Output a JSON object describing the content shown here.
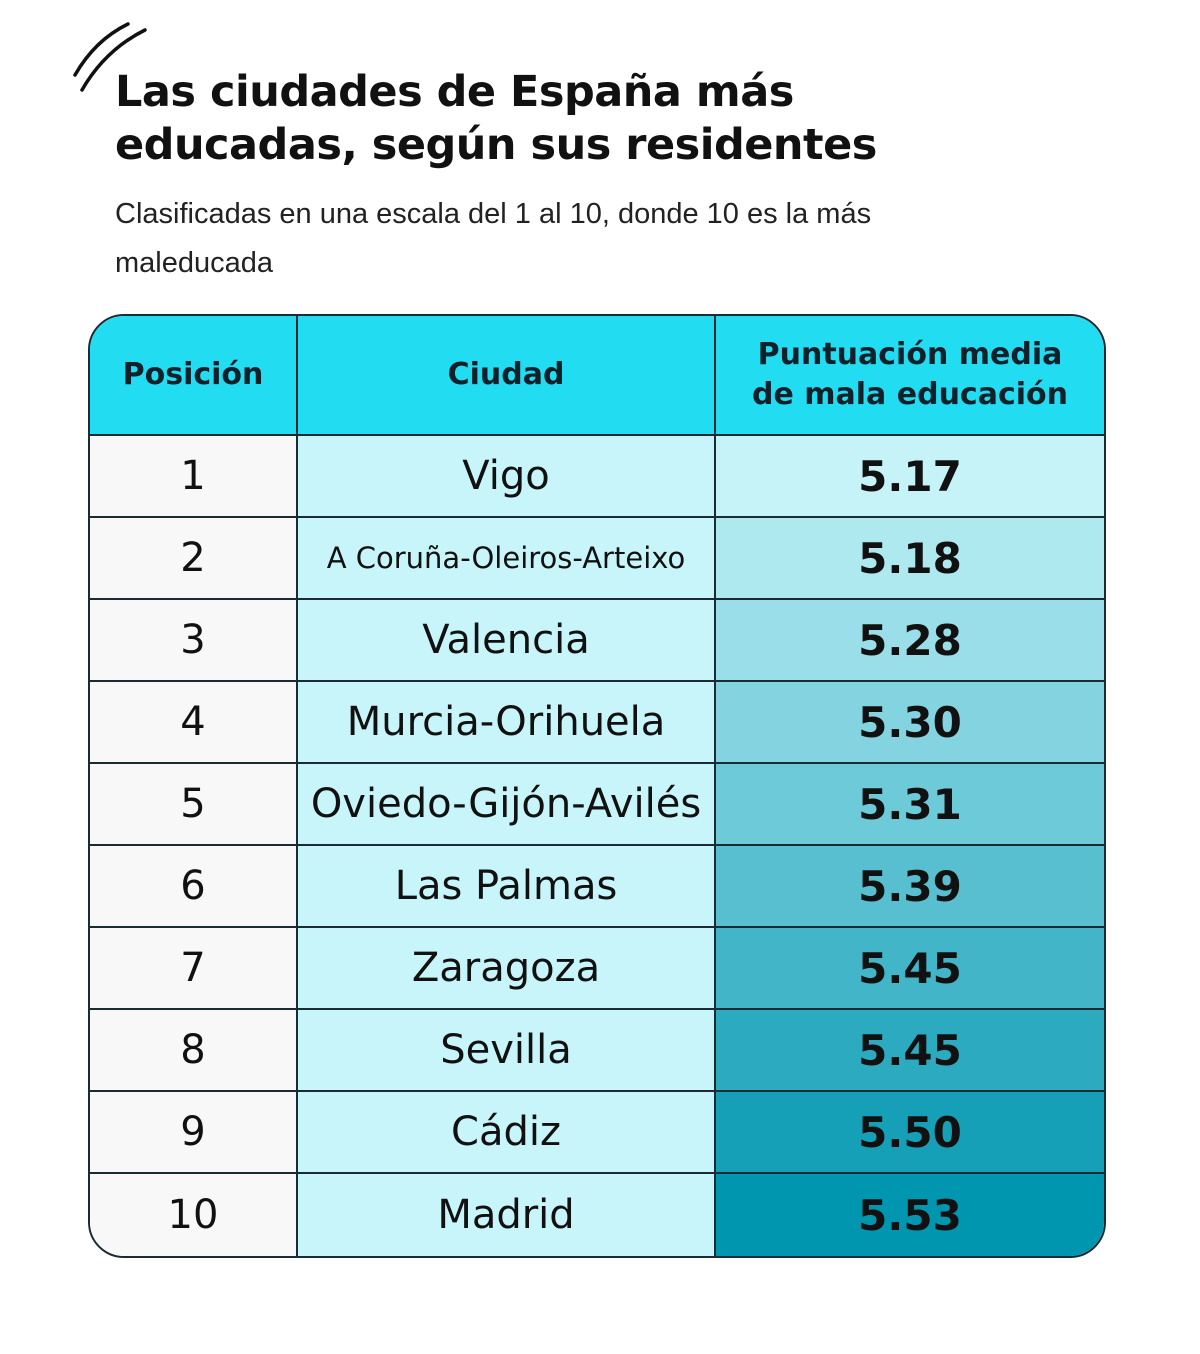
{
  "title": "Las ciudades de España más educadas, según sus residentes",
  "subtitle": "Clasificadas en una escala del 1 al 10, donde 10 es la más maleducada",
  "colors": {
    "header": "#22dcf2",
    "city_column": "#c8f5fa",
    "position_column": "#f8f8f8",
    "score_low": "#c5f3f8",
    "score_high": "#0096b0"
  },
  "chart_data": {
    "type": "table",
    "columns": [
      "Posición",
      "Ciudad",
      "Puntuación media de mala educación"
    ],
    "rows": [
      {
        "position": "1",
        "city": "Vigo",
        "score": "5.17"
      },
      {
        "position": "2",
        "city": "A Coruña-Oleiros-Arteixo",
        "score": "5.18"
      },
      {
        "position": "3",
        "city": "Valencia",
        "score": "5.28"
      },
      {
        "position": "4",
        "city": "Murcia-Orihuela",
        "score": "5.30"
      },
      {
        "position": "5",
        "city": "Oviedo-Gijón-Avilés",
        "score": "5.31"
      },
      {
        "position": "6",
        "city": "Las Palmas",
        "score": "5.39"
      },
      {
        "position": "7",
        "city": "Zaragoza",
        "score": "5.45"
      },
      {
        "position": "8",
        "city": "Sevilla",
        "score": "5.45"
      },
      {
        "position": "9",
        "city": "Cádiz",
        "score": "5.50"
      },
      {
        "position": "10",
        "city": "Madrid",
        "score": "5.53"
      }
    ]
  }
}
